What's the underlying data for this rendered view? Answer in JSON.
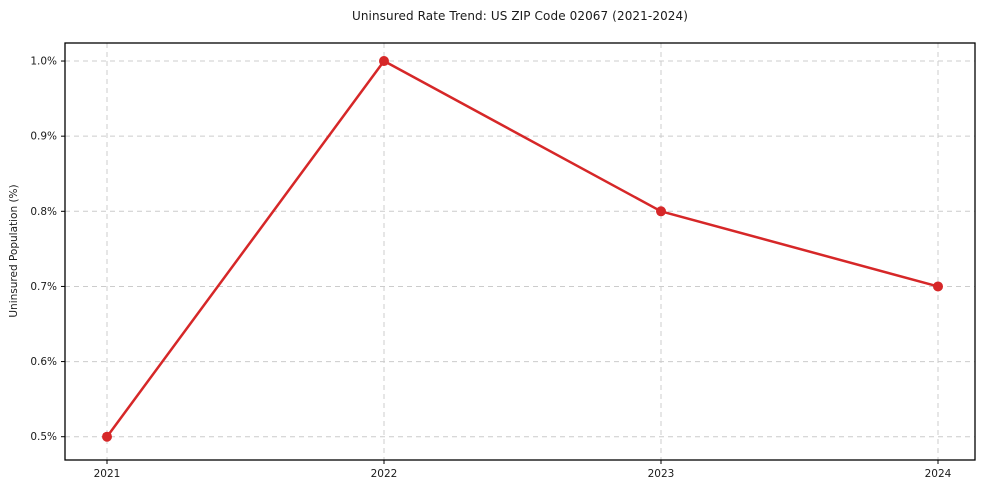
{
  "chart_data": {
    "type": "line",
    "title": "Uninsured Rate Trend: US ZIP Code 02067 (2021-2024)",
    "xlabel": "",
    "ylabel": "Uninsured Population (%)",
    "categories": [
      "2021",
      "2022",
      "2023",
      "2024"
    ],
    "series": [
      {
        "values": [
          0.5,
          1.0,
          0.8,
          0.7
        ],
        "color": "#d62728"
      }
    ],
    "y_ticks": [
      0.5,
      0.6,
      0.7,
      0.8,
      0.9,
      1.0
    ],
    "y_tick_labels": [
      "0.5%",
      "0.6%",
      "0.7%",
      "0.8%",
      "0.9%",
      "1.0%"
    ],
    "ylim": [
      0.469,
      1.024
    ],
    "grid": true,
    "grid_style": "dashed",
    "grid_color": "#cccccc",
    "axis_border_color": "#000000",
    "marker": "circle",
    "line_color": "#d62728",
    "legend": "none"
  }
}
